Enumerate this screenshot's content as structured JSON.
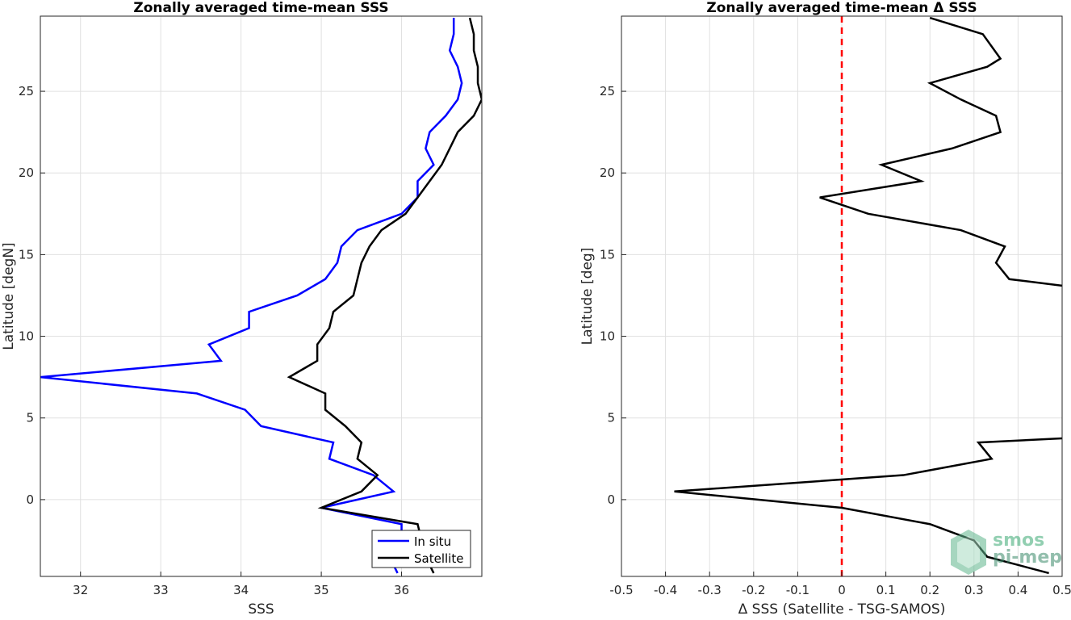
{
  "chart_data": [
    {
      "type": "line",
      "title": "Zonally averaged time-mean SSS",
      "xlabel": "SSS",
      "ylabel": "Latitude [degN]",
      "xlim": [
        31.5,
        37
      ],
      "ylim": [
        -4.7,
        29.6
      ],
      "xticks": [
        "32",
        "33",
        "34",
        "35",
        "36"
      ],
      "yticks": [
        "0",
        "5",
        "10",
        "15",
        "20",
        "25"
      ],
      "grid": true,
      "legend_position": "bottom-right",
      "series": [
        {
          "name": "In situ",
          "color": "#0000ff",
          "points": [
            [
              35.95,
              -4.5
            ],
            [
              35.9,
              -4.0
            ],
            [
              36.0,
              -2.0
            ],
            [
              36.0,
              -1.5
            ],
            [
              35.0,
              -0.5
            ],
            [
              35.9,
              0.5
            ],
            [
              35.65,
              1.5
            ],
            [
              35.1,
              2.5
            ],
            [
              35.15,
              3.5
            ],
            [
              34.25,
              4.5
            ],
            [
              34.05,
              5.5
            ],
            [
              33.45,
              6.5
            ],
            [
              31.5,
              7.5
            ],
            [
              33.75,
              8.5
            ],
            [
              33.6,
              9.5
            ],
            [
              34.1,
              10.5
            ],
            [
              34.1,
              11.5
            ],
            [
              34.7,
              12.5
            ],
            [
              35.05,
              13.5
            ],
            [
              35.2,
              14.5
            ],
            [
              35.25,
              15.5
            ],
            [
              35.45,
              16.5
            ],
            [
              36.0,
              17.5
            ],
            [
              36.2,
              18.5
            ],
            [
              36.2,
              19.5
            ],
            [
              36.4,
              20.5
            ],
            [
              36.3,
              21.5
            ],
            [
              36.35,
              22.5
            ],
            [
              36.55,
              23.5
            ],
            [
              36.7,
              24.5
            ],
            [
              36.75,
              25.5
            ],
            [
              36.7,
              26.5
            ],
            [
              36.6,
              27.5
            ],
            [
              36.65,
              28.5
            ],
            [
              36.65,
              29.5
            ]
          ]
        },
        {
          "name": "Satellite",
          "color": "#000000",
          "points": [
            [
              36.4,
              -4.5
            ],
            [
              36.3,
              -3.5
            ],
            [
              36.25,
              -2.5
            ],
            [
              36.2,
              -1.5
            ],
            [
              35.0,
              -0.5
            ],
            [
              35.5,
              0.5
            ],
            [
              35.7,
              1.5
            ],
            [
              35.45,
              2.5
            ],
            [
              35.5,
              3.5
            ],
            [
              35.3,
              4.5
            ],
            [
              35.05,
              5.5
            ],
            [
              35.05,
              6.5
            ],
            [
              34.6,
              7.5
            ],
            [
              34.95,
              8.5
            ],
            [
              34.95,
              9.5
            ],
            [
              35.1,
              10.5
            ],
            [
              35.15,
              11.5
            ],
            [
              35.4,
              12.5
            ],
            [
              35.45,
              13.5
            ],
            [
              35.5,
              14.5
            ],
            [
              35.6,
              15.5
            ],
            [
              35.75,
              16.5
            ],
            [
              36.05,
              17.5
            ],
            [
              36.2,
              18.5
            ],
            [
              36.35,
              19.5
            ],
            [
              36.5,
              20.5
            ],
            [
              36.6,
              21.5
            ],
            [
              36.7,
              22.5
            ],
            [
              36.9,
              23.5
            ],
            [
              37.0,
              24.5
            ],
            [
              36.95,
              25.5
            ],
            [
              36.95,
              26.5
            ],
            [
              36.9,
              27.5
            ],
            [
              36.9,
              28.5
            ],
            [
              36.85,
              29.5
            ]
          ]
        }
      ]
    },
    {
      "type": "line",
      "title": "Zonally averaged time-mean Δ SSS",
      "xlabel": "Δ SSS (Satellite - TSG-SAMOS)",
      "ylabel": "Latitude [deg]",
      "xlim": [
        -0.5,
        0.5
      ],
      "ylim": [
        -4.7,
        29.6
      ],
      "xticks": [
        "-0.5",
        "-0.4",
        "-0.3",
        "-0.2",
        "-0.1",
        "0",
        "0.1",
        "0.2",
        "0.3",
        "0.4",
        "0.5"
      ],
      "yticks": [
        "0",
        "5",
        "10",
        "15",
        "20",
        "25"
      ],
      "grid": true,
      "zero_line": {
        "x": 0,
        "color": "#ff0000",
        "style": "dashed"
      },
      "series": [
        {
          "color": "#000000",
          "segments": [
            [
              [
                0.47,
                -4.5
              ],
              [
                0.4,
                -4.0
              ],
              [
                0.33,
                -3.5
              ],
              [
                0.3,
                -2.5
              ],
              [
                0.2,
                -1.5
              ],
              [
                0.0,
                -0.5
              ],
              [
                -0.38,
                0.5
              ],
              [
                0.14,
                1.5
              ],
              [
                0.34,
                2.5
              ],
              [
                0.31,
                3.5
              ],
              [
                0.5,
                3.75
              ]
            ],
            [
              [
                0.5,
                13.1
              ],
              [
                0.38,
                13.5
              ],
              [
                0.35,
                14.5
              ],
              [
                0.37,
                15.5
              ],
              [
                0.27,
                16.5
              ],
              [
                0.06,
                17.5
              ],
              [
                -0.05,
                18.5
              ],
              [
                0.18,
                19.5
              ],
              [
                0.09,
                20.5
              ],
              [
                0.25,
                21.5
              ],
              [
                0.36,
                22.5
              ],
              [
                0.35,
                23.5
              ],
              [
                0.27,
                24.5
              ],
              [
                0.2,
                25.5
              ],
              [
                0.33,
                26.5
              ],
              [
                0.36,
                27.0
              ],
              [
                0.32,
                28.5
              ],
              [
                0.2,
                29.5
              ]
            ]
          ]
        }
      ]
    }
  ],
  "watermark": {
    "line1": "smos",
    "line2": "pi-mep"
  }
}
